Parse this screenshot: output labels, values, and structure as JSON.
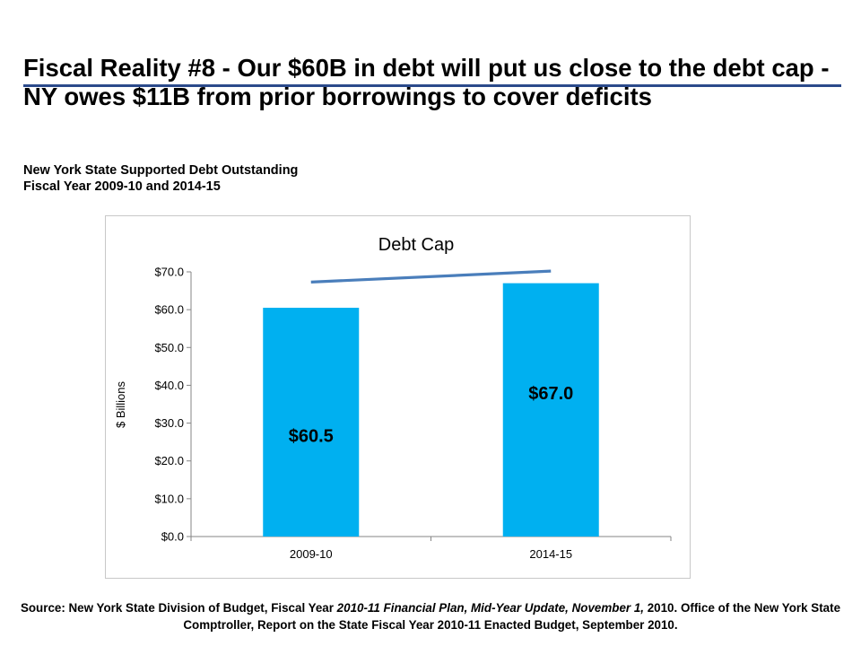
{
  "slide": {
    "title": "Fiscal Reality #8 -  Our $60B in debt will put us close to the debt cap - NY owes $11B from prior borrowings to cover deficits",
    "subtitle_line1": "New York State Supported Debt Outstanding",
    "subtitle_line2": "Fiscal Year 2009-10 and 2014-15",
    "source_part1": "Source: New York State Division of Budget, Fiscal Year ",
    "source_part2": "2010-11 Financial Plan, Mid-Year Update, November 1,",
    "source_part3": " 2010. Office of the New York State Comptroller, Report on the State Fiscal Year 2010-11 Enacted Budget, September 2010.",
    "title_rule_color": "#2b4a8b"
  },
  "chart_data": {
    "type": "bar",
    "title": "Debt Cap",
    "ylabel": "$ Billions",
    "categories": [
      "2009-10",
      "2014-15"
    ],
    "series": [
      {
        "values": [
          60.5,
          67.0
        ],
        "data_labels": [
          "$60.5",
          "$67.0"
        ],
        "color": "#00b0f0"
      }
    ],
    "debt_cap_line": {
      "values": [
        67.3,
        70.2
      ],
      "color": "#4a7ebb"
    },
    "ylim": [
      0,
      70
    ],
    "yticks": [
      0,
      10,
      20,
      30,
      40,
      50,
      60,
      70
    ],
    "ytick_labels": [
      "$0.0",
      "$10.0",
      "$20.0",
      "$30.0",
      "$40.0",
      "$50.0",
      "$60.0",
      "$70.0"
    ],
    "grid": false,
    "legend": "none"
  }
}
